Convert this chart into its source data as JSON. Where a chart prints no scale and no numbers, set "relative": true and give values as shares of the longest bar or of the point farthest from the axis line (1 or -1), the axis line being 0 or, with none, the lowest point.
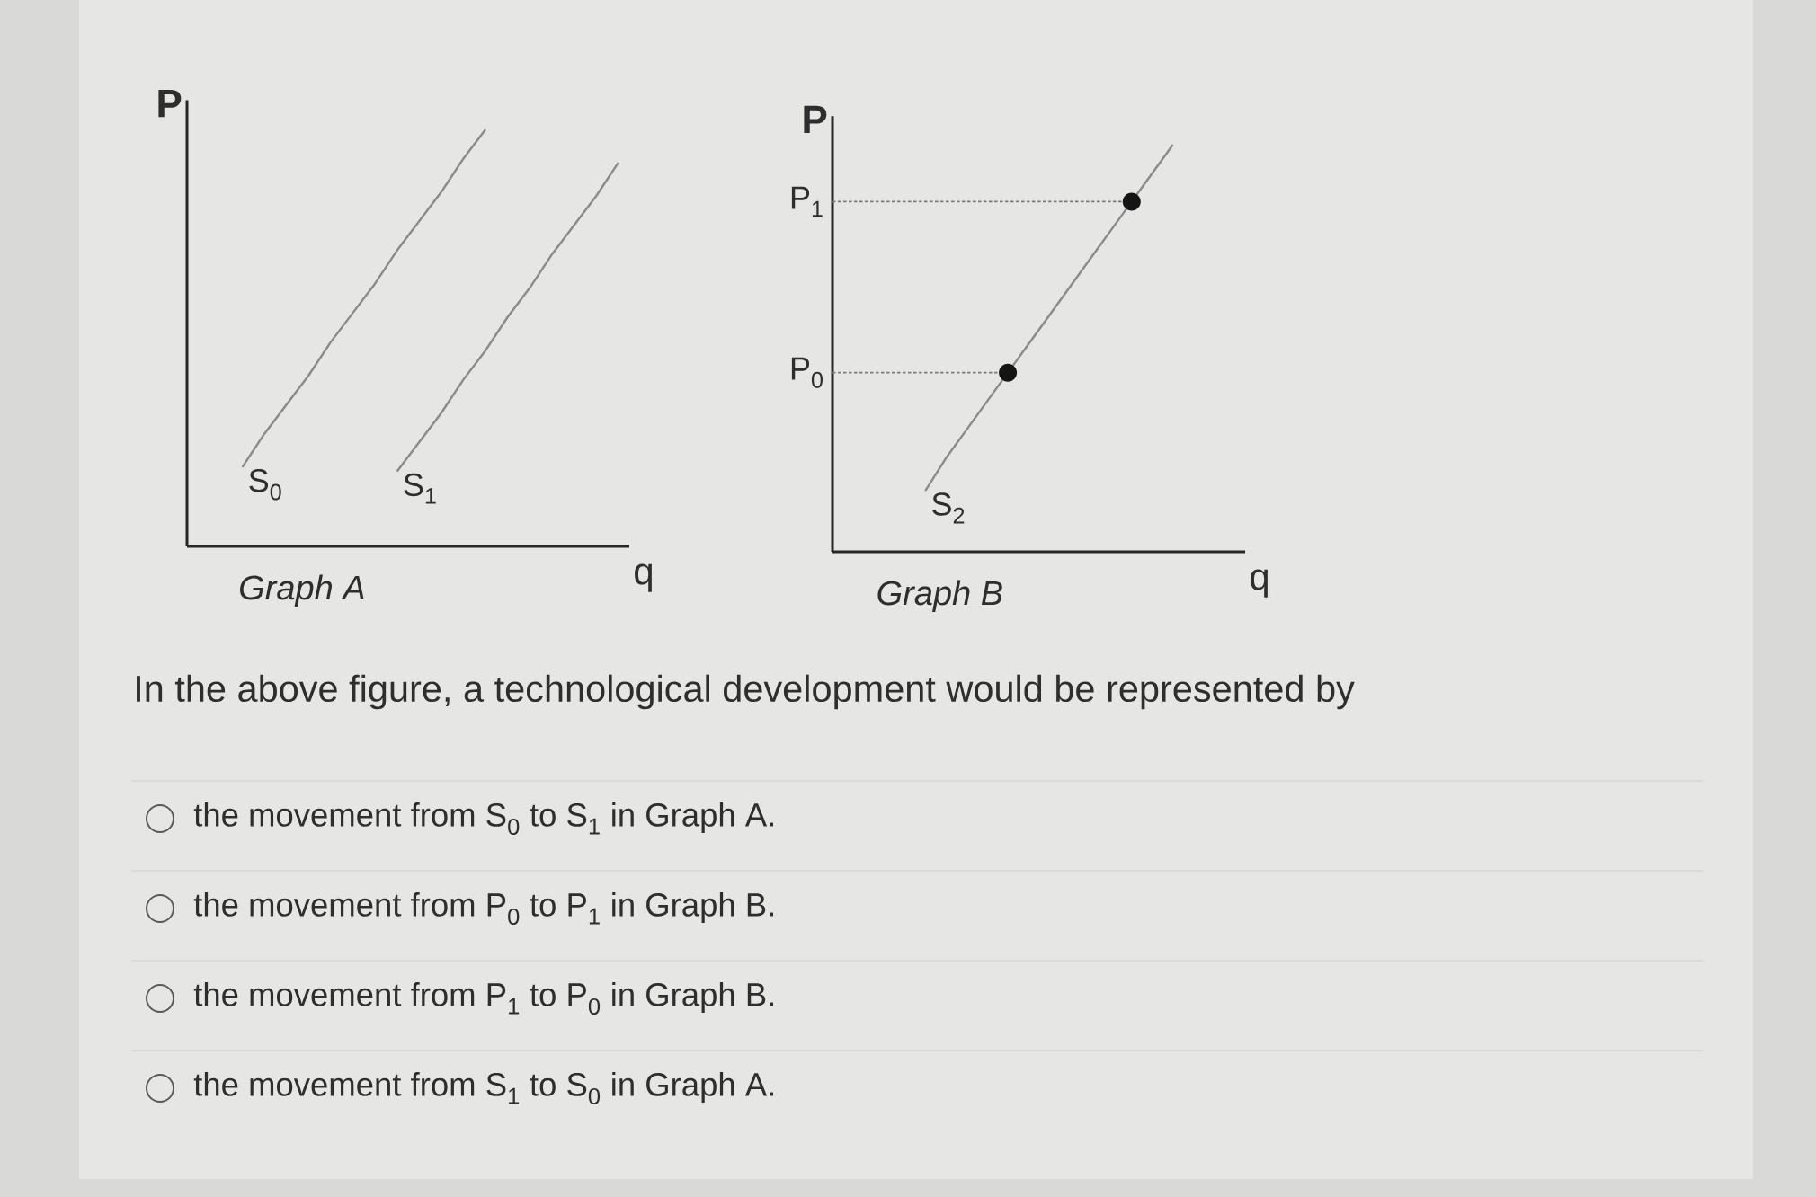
{
  "chart_data": [
    {
      "type": "line",
      "title": "Graph A",
      "xlabel": "q",
      "ylabel": "P",
      "relative": true,
      "categories": [
        null,
        null,
        null,
        null,
        null,
        null,
        null,
        null,
        null,
        null,
        null,
        null,
        null,
        null,
        null,
        null,
        null,
        null,
        null,
        null
      ],
      "series": [
        {
          "name": "S$_{0}$",
          "color": "#8a8a8a",
          "values": [
            null,
            null,
            0.19,
            0.27,
            0.34,
            0.41,
            0.49,
            0.56,
            0.63,
            0.71,
            0.78,
            0.85,
            0.93,
            1.0,
            null,
            null,
            null,
            null,
            null,
            null
          ]
        },
        {
          "name": "S$_{1}$",
          "color": "#8a8a8a",
          "values": [
            null,
            null,
            null,
            null,
            null,
            null,
            null,
            null,
            null,
            0.18,
            0.25,
            0.32,
            0.4,
            0.47,
            0.55,
            0.62,
            0.7,
            0.77,
            0.84,
            0.92
          ]
        }
      ]
    },
    {
      "type": "line",
      "title": "Graph B",
      "xlabel": "q",
      "ylabel": "P",
      "relative": true,
      "categories": [
        null,
        null,
        null,
        null,
        null,
        null,
        null,
        null,
        null,
        null,
        null,
        null,
        null,
        null,
        null,
        null,
        null,
        null,
        null,
        null
      ],
      "series": [
        {
          "name": "S$_{2}$",
          "color": "#8a8a8a",
          "values": [
            null,
            null,
            null,
            null,
            0.15,
            0.23,
            0.3,
            0.37,
            0.44,
            0.51,
            0.58,
            0.65,
            0.72,
            0.79,
            0.86,
            0.93,
            1.0,
            null,
            null,
            null
          ]
        }
      ],
      "ref_lines": [
        {
          "axis": "y",
          "value": 0.44,
          "label": "P$_{0}$",
          "line_style": "dotted",
          "color": "#7a7a7a"
        },
        {
          "axis": "y",
          "value": 0.86,
          "label": "P$_{1}$",
          "line_style": "dotted",
          "color": "#7a7a7a"
        }
      ]
    },
    {
      "type": "other",
      "title": "In the above figure, a technological development would be represented by",
      "annotations": [
        "the movement from S$_{0}$ to S$_{1}$ in Graph A.",
        "the movement from P$_{0}$ to P$_{1}$ in Graph B.",
        "the movement from P$_{1}$ to P$_{0}$ in Graph B.",
        "the movement from S$_{1}$ to S$_{0}$ in Graph A."
      ]
    }
  ]
}
